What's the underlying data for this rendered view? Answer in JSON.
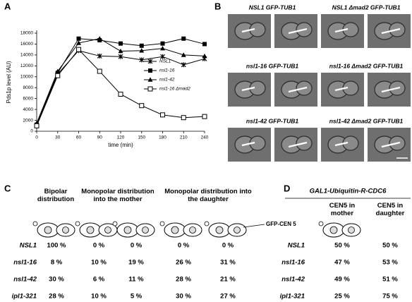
{
  "chart_data": {
    "type": "line",
    "panel_label": "A",
    "ylabel": "Pds1p level (AU)",
    "xlabel": "time (min)",
    "x": [
      0,
      30,
      60,
      90,
      120,
      150,
      180,
      210,
      240
    ],
    "xlim": [
      0,
      240
    ],
    "xticks": [
      0,
      30,
      60,
      90,
      120,
      150,
      180,
      210,
      240
    ],
    "ylim": [
      0,
      18000
    ],
    "yticks": [
      0,
      2000,
      4000,
      6000,
      8000,
      10000,
      12000,
      14000,
      16000,
      18000
    ],
    "series": [
      {
        "name": "NSL1",
        "color": "#000000",
        "marker": "star",
        "values": [
          1000,
          10500,
          14800,
          13800,
          13700,
          13100,
          13700,
          12200,
          13300
        ]
      },
      {
        "name": "nsl1-16",
        "color": "#000000",
        "marker": "square",
        "values": [
          1200,
          10700,
          17000,
          16700,
          16100,
          15700,
          16100,
          17000,
          16000
        ]
      },
      {
        "name": "nsl1-42",
        "color": "#000000",
        "marker": "triangle",
        "values": [
          1500,
          11000,
          16200,
          17000,
          14700,
          14800,
          15200,
          14000,
          13800
        ]
      },
      {
        "name": "nsl1-16 Δmad2",
        "color": "#000000",
        "marker": "open-square",
        "values": [
          1000,
          10200,
          15000,
          11000,
          6800,
          4700,
          3000,
          2500,
          2700
        ]
      }
    ]
  },
  "panel_b": {
    "panel_label": "B",
    "micrographs": [
      "NSL1 GFP-TUB1",
      "NSL1 Δmad2 GFP-TUB1",
      "nsl1-16 GFP-TUB1",
      "nsl1-16 Δmad2 GFP-TUB1",
      "nsl1-42 GFP-TUB1",
      "nsl1-42 Δmad2 GFP-TUB1"
    ]
  },
  "panel_c": {
    "panel_label": "C",
    "headers": [
      "Bipolar distribution",
      "Monopolar distribution into the mother",
      "Monopolar distribution into the daughter"
    ],
    "probe_label": "GFP-CEN 5",
    "rows": [
      {
        "strain": "NSL1",
        "cells": [
          "100 %",
          "0 %",
          "0 %",
          "0 %",
          "0 %"
        ]
      },
      {
        "strain": "nsl1-16",
        "cells": [
          "8 %",
          "10 %",
          "19 %",
          "26 %",
          "31 %"
        ]
      },
      {
        "strain": "nsl1-42",
        "cells": [
          "30 %",
          "6 %",
          "11 %",
          "28 %",
          "21 %"
        ]
      },
      {
        "strain": "ipl1-321",
        "cells": [
          "28 %",
          "10 %",
          "5 %",
          "30 %",
          "27 %"
        ]
      }
    ]
  },
  "panel_d": {
    "panel_label": "D",
    "title": "GAL1-Ubiquitin-R-CDC6",
    "headers": [
      "CEN5 in mother",
      "CEN5 in daughter"
    ],
    "rows": [
      {
        "strain": "NSL1",
        "cells": [
          "50 %",
          "50 %"
        ]
      },
      {
        "strain": "nsl1-16",
        "cells": [
          "47 %",
          "53 %"
        ]
      },
      {
        "strain": "nsl1-42",
        "cells": [
          "49 %",
          "51 %"
        ]
      },
      {
        "strain": "ipl1-321",
        "cells": [
          "25 %",
          "75 %"
        ]
      }
    ]
  }
}
